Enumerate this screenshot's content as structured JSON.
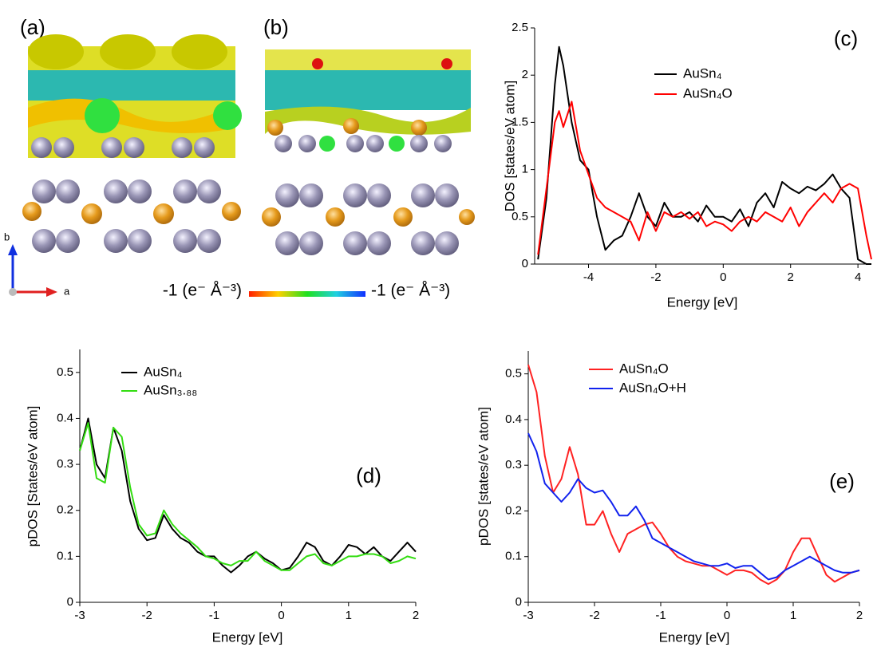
{
  "panels": {
    "a": "(a)",
    "b": "(b)"
  },
  "colorbar": {
    "left_label": "-1 (e⁻ Å⁻³)",
    "right_label": "-1 (e⁻ Å⁻³)"
  },
  "axes_triad": {
    "b": "b",
    "a": "a"
  },
  "chart_data": [
    {
      "type": "line",
      "label": "(c)",
      "x_label": "Energy [eV]",
      "y_label": "DOS [states/eV atom]",
      "x": [
        -5.5,
        -5.25,
        -5,
        -4.875,
        -4.75,
        -4.5,
        -4.25,
        -4,
        -3.75,
        -3.5,
        -3.25,
        -3,
        -2.75,
        -2.5,
        -2.25,
        -2,
        -1.75,
        -1.5,
        -1.25,
        -1,
        -0.75,
        -0.5,
        -0.25,
        0,
        0.25,
        0.5,
        0.75,
        1,
        1.25,
        1.5,
        1.75,
        2,
        2.25,
        2.5,
        2.75,
        3,
        3.25,
        3.5,
        3.75,
        4,
        4.25,
        4.4
      ],
      "series": [
        {
          "name": "AuSn₄",
          "color": "#000000",
          "values": [
            0.05,
            0.7,
            1.9,
            2.3,
            2.1,
            1.5,
            1.1,
            1.0,
            0.5,
            0.15,
            0.25,
            0.3,
            0.5,
            0.75,
            0.5,
            0.4,
            0.65,
            0.5,
            0.5,
            0.55,
            0.45,
            0.62,
            0.5,
            0.5,
            0.45,
            0.58,
            0.4,
            0.65,
            0.75,
            0.6,
            0.87,
            0.8,
            0.75,
            0.82,
            0.78,
            0.85,
            0.95,
            0.8,
            0.7,
            0.05,
            0,
            0
          ]
        },
        {
          "name": "AuSn₄O",
          "color": "#ff0000",
          "values": [
            0.1,
            0.8,
            1.5,
            1.62,
            1.45,
            1.72,
            1.2,
            0.95,
            0.7,
            0.6,
            0.55,
            0.5,
            0.45,
            0.25,
            0.55,
            0.35,
            0.55,
            0.5,
            0.55,
            0.48,
            0.55,
            0.4,
            0.45,
            0.42,
            0.35,
            0.45,
            0.5,
            0.45,
            0.55,
            0.5,
            0.45,
            0.6,
            0.4,
            0.55,
            0.65,
            0.75,
            0.65,
            0.8,
            0.85,
            0.8,
            0.3,
            0.05
          ]
        }
      ],
      "xlim": [
        -5.6,
        4.4
      ],
      "xticks": [
        -4,
        -2,
        0,
        2,
        4
      ],
      "ylim": [
        0,
        2.5
      ],
      "yticks": [
        0,
        0.5,
        1,
        1.5,
        2,
        2.5
      ]
    },
    {
      "type": "line",
      "label": "(d)",
      "x_label": "Energy [eV]",
      "y_label": "pDOS [States/eV atom]",
      "x": [
        -3,
        -2.875,
        -2.75,
        -2.625,
        -2.5,
        -2.375,
        -2.25,
        -2.125,
        -2,
        -1.875,
        -1.75,
        -1.625,
        -1.5,
        -1.375,
        -1.25,
        -1.125,
        -1,
        -0.875,
        -0.75,
        -0.625,
        -0.5,
        -0.375,
        -0.25,
        -0.125,
        0,
        0.125,
        0.25,
        0.375,
        0.5,
        0.625,
        0.75,
        0.875,
        1,
        1.125,
        1.25,
        1.375,
        1.5,
        1.625,
        1.75,
        1.875,
        2
      ],
      "series": [
        {
          "name": "AuSn₄",
          "color": "#000000",
          "values": [
            0.33,
            0.4,
            0.3,
            0.27,
            0.38,
            0.33,
            0.22,
            0.16,
            0.135,
            0.14,
            0.19,
            0.16,
            0.14,
            0.13,
            0.11,
            0.1,
            0.1,
            0.08,
            0.065,
            0.08,
            0.1,
            0.11,
            0.095,
            0.085,
            0.07,
            0.075,
            0.1,
            0.13,
            0.12,
            0.09,
            0.08,
            0.1,
            0.125,
            0.12,
            0.105,
            0.12,
            0.1,
            0.09,
            0.11,
            0.13,
            0.11
          ]
        },
        {
          "name": "AuSn₃.₈₈",
          "color": "#33dd11",
          "values": [
            0.33,
            0.39,
            0.27,
            0.26,
            0.38,
            0.36,
            0.25,
            0.17,
            0.145,
            0.15,
            0.2,
            0.17,
            0.15,
            0.135,
            0.12,
            0.1,
            0.095,
            0.085,
            0.08,
            0.09,
            0.09,
            0.11,
            0.09,
            0.08,
            0.07,
            0.07,
            0.085,
            0.1,
            0.105,
            0.085,
            0.08,
            0.09,
            0.1,
            0.1,
            0.105,
            0.105,
            0.1,
            0.085,
            0.09,
            0.1,
            0.095
          ]
        }
      ],
      "xlim": [
        -3,
        2
      ],
      "xticks": [
        -3,
        -2,
        -1,
        0,
        1,
        2
      ],
      "ylim": [
        0,
        0.55
      ],
      "yticks": [
        0,
        0.1,
        0.2,
        0.3,
        0.4,
        0.5
      ]
    },
    {
      "type": "line",
      "label": "(e)",
      "x_label": "Energy [eV]",
      "y_label": "pDOS [states/eV atom]",
      "x": [
        -3,
        -2.875,
        -2.75,
        -2.625,
        -2.5,
        -2.375,
        -2.25,
        -2.125,
        -2,
        -1.875,
        -1.75,
        -1.625,
        -1.5,
        -1.375,
        -1.25,
        -1.125,
        -1,
        -0.875,
        -0.75,
        -0.625,
        -0.5,
        -0.375,
        -0.25,
        -0.125,
        0,
        0.125,
        0.25,
        0.375,
        0.5,
        0.625,
        0.75,
        0.875,
        1,
        1.125,
        1.25,
        1.375,
        1.5,
        1.625,
        1.75,
        1.875,
        2
      ],
      "series": [
        {
          "name": "AuSn₄O",
          "color": "#ff2222",
          "values": [
            0.52,
            0.46,
            0.32,
            0.24,
            0.27,
            0.34,
            0.28,
            0.17,
            0.17,
            0.2,
            0.15,
            0.11,
            0.15,
            0.16,
            0.17,
            0.175,
            0.15,
            0.12,
            0.1,
            0.09,
            0.085,
            0.08,
            0.08,
            0.07,
            0.06,
            0.07,
            0.07,
            0.065,
            0.05,
            0.04,
            0.05,
            0.07,
            0.11,
            0.14,
            0.14,
            0.1,
            0.06,
            0.045,
            0.055,
            0.065,
            0.07
          ]
        },
        {
          "name": "AuSn₄O+H",
          "color": "#1122ee",
          "values": [
            0.37,
            0.33,
            0.26,
            0.24,
            0.22,
            0.24,
            0.27,
            0.25,
            0.24,
            0.245,
            0.22,
            0.19,
            0.19,
            0.21,
            0.18,
            0.14,
            0.13,
            0.12,
            0.11,
            0.1,
            0.09,
            0.085,
            0.08,
            0.08,
            0.085,
            0.075,
            0.08,
            0.08,
            0.065,
            0.05,
            0.055,
            0.07,
            0.08,
            0.09,
            0.1,
            0.09,
            0.08,
            0.07,
            0.065,
            0.065,
            0.07
          ]
        }
      ],
      "xlim": [
        -3,
        2
      ],
      "xticks": [
        -3,
        -2,
        -1,
        0,
        1,
        2
      ],
      "ylim": [
        0,
        0.55
      ],
      "yticks": [
        0,
        0.1,
        0.2,
        0.3,
        0.4,
        0.5
      ]
    }
  ]
}
